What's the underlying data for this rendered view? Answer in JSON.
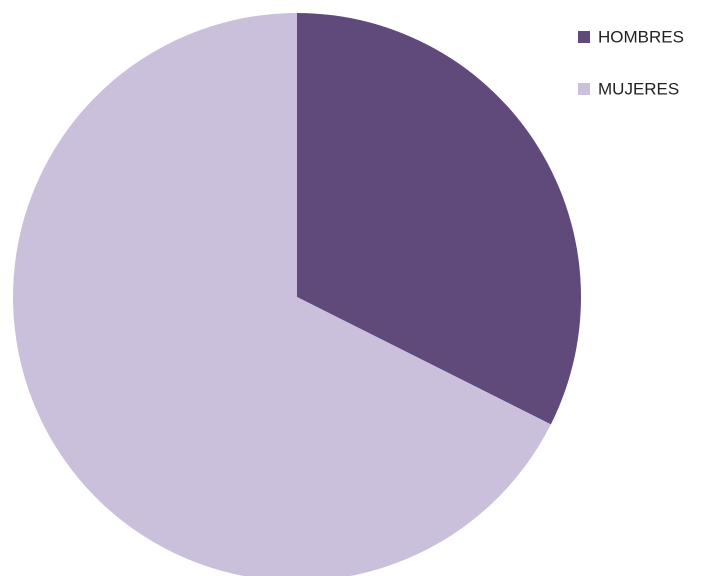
{
  "chart_data": {
    "type": "pie",
    "categories": [
      "HOMBRES",
      "MUJERES"
    ],
    "values": [
      32.4,
      67.6
    ],
    "colors": [
      "#5f4a7b",
      "#cbc0db"
    ],
    "legend": "top-right"
  }
}
